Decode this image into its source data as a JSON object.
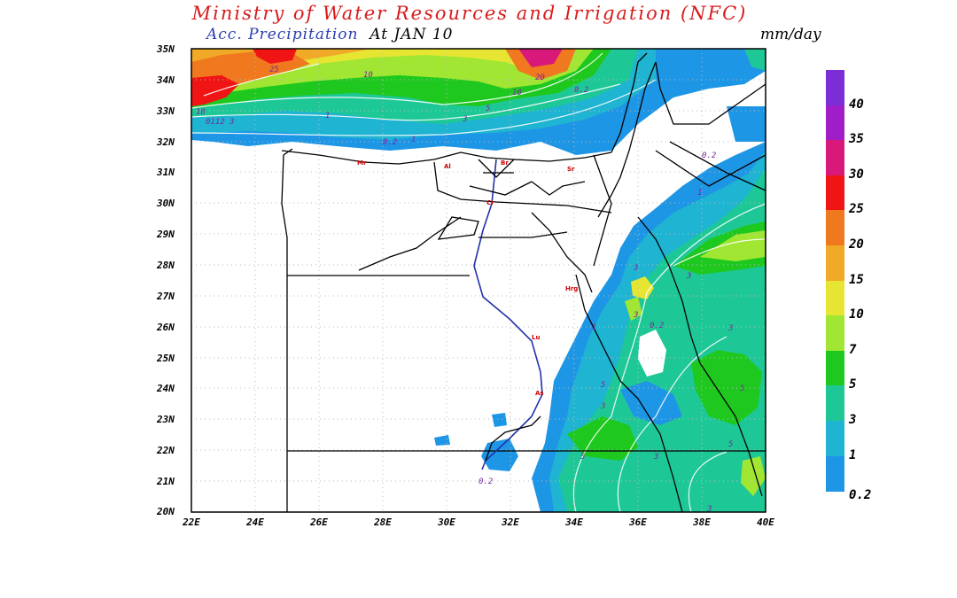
{
  "header": {
    "title": "Ministry of Water Resources and Irrigation (NFC)",
    "subtitle_prefix": "Acc. Precipitation",
    "subtitle_at": "At JAN 10",
    "units": "mm/day"
  },
  "map": {
    "lat_labels": [
      "35N",
      "34N",
      "33N",
      "32N",
      "31N",
      "30N",
      "29N",
      "28N",
      "27N",
      "26N",
      "25N",
      "24N",
      "23N",
      "22N",
      "21N",
      "20N"
    ],
    "lon_labels": [
      "22E",
      "24E",
      "26E",
      "28E",
      "30E",
      "32E",
      "34E",
      "36E",
      "38E",
      "40E"
    ],
    "contour_labels": {
      "c25": "25",
      "c10a": "10",
      "c20": "20",
      "c10b": "10",
      "c02a": "0.2",
      "c5a": "5",
      "c3a": "3",
      "c1a": "1",
      "c02b": "0.2",
      "c1b": "1",
      "c10c": "10",
      "c012": "0112",
      "c3b": "3",
      "c02c": "0.2",
      "c1c": "1",
      "c3c": "3",
      "c3d": "3",
      "c1d": "1",
      "c3e": "3",
      "c02d": "0.2",
      "c5b": "5",
      "c3f": "3",
      "c5c": "5",
      "c3g": "3",
      "c02e": "0.2",
      "c5d": "5",
      "c3h": "3",
      "c3i": "3",
      "c5e": "5"
    },
    "city_markers": [
      "Mr",
      "Al",
      "Cr",
      "Sr",
      "Br",
      "Hrg",
      "Lu",
      "As"
    ]
  },
  "colorbar": {
    "labels": [
      "40",
      "35",
      "30",
      "25",
      "20",
      "15",
      "10",
      "7",
      "5",
      "3",
      "1",
      "0.2"
    ],
    "colors": [
      "#7b2ed6",
      "#a01ec8",
      "#d8197a",
      "#f01414",
      "#f0781e",
      "#f0aa28",
      "#e6e632",
      "#a0e632",
      "#1ec81e",
      "#1ec896",
      "#1eb4d2",
      "#1e96e6"
    ]
  }
}
